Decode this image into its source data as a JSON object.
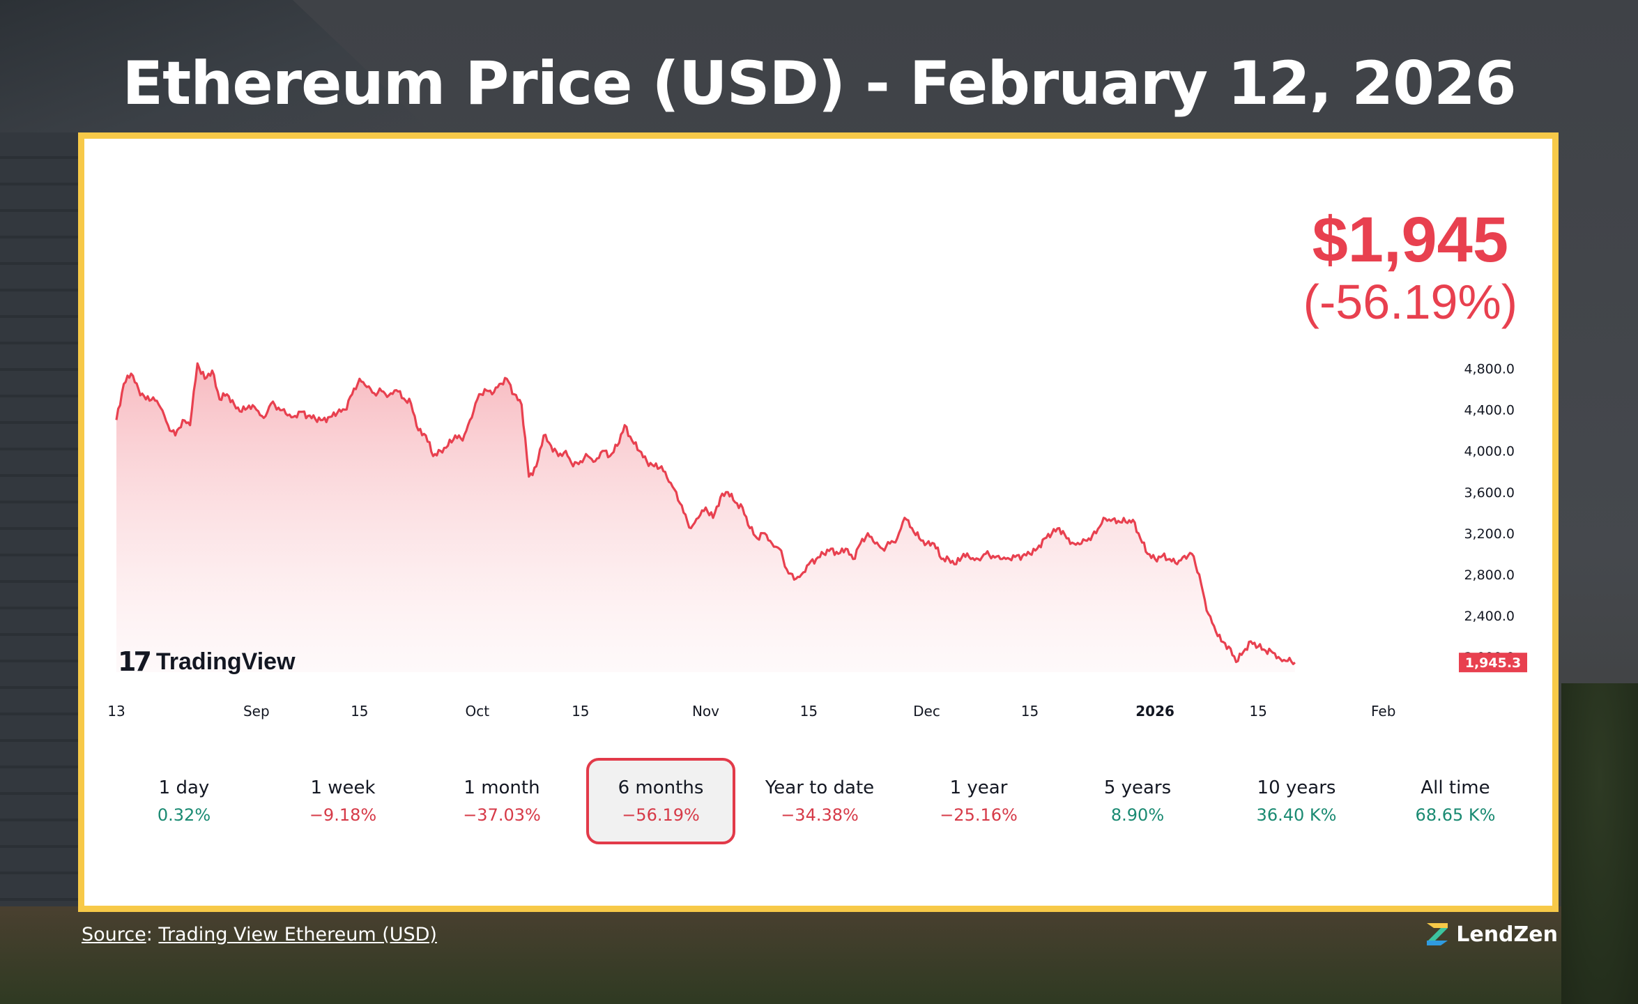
{
  "title": "Ethereum Price (USD) - February 12, 2026",
  "price": {
    "value": "$1,945",
    "change": "(-56.19%)"
  },
  "tradingview_label": "TradingView",
  "chart_data": {
    "type": "area",
    "ylim": [
      1750,
      5000
    ],
    "y_ticks": [
      4800,
      4400,
      4000,
      3600,
      3200,
      2800,
      2400,
      2000
    ],
    "y_tick_labels": [
      "4,800.0",
      "4,400.0",
      "4,000.0",
      "3,600.0",
      "3,200.0",
      "2,800.0",
      "2,400.0",
      "2,000.0"
    ],
    "x_ticks": [
      {
        "label": "13",
        "day": 0
      },
      {
        "label": "Sep",
        "day": 19
      },
      {
        "label": "15",
        "day": 33
      },
      {
        "label": "Oct",
        "day": 49
      },
      {
        "label": "15",
        "day": 63
      },
      {
        "label": "Nov",
        "day": 80
      },
      {
        "label": "15",
        "day": 94
      },
      {
        "label": "Dec",
        "day": 110
      },
      {
        "label": "15",
        "day": 124
      },
      {
        "label": "2026",
        "day": 141
      },
      {
        "label": "15",
        "day": 155
      },
      {
        "label": "Feb",
        "day": 172
      }
    ],
    "x_range": [
      0,
      183
    ],
    "last_value_label": "1,945.3",
    "series": [
      {
        "color": "#e8404f",
        "points": [
          [
            0,
            4300
          ],
          [
            1,
            4650
          ],
          [
            2,
            4750
          ],
          [
            3,
            4600
          ],
          [
            4,
            4500
          ],
          [
            5,
            4520
          ],
          [
            6,
            4420
          ],
          [
            7,
            4250
          ],
          [
            8,
            4150
          ],
          [
            9,
            4300
          ],
          [
            10,
            4250
          ],
          [
            11,
            4850
          ],
          [
            12,
            4700
          ],
          [
            13,
            4780
          ],
          [
            14,
            4500
          ],
          [
            15,
            4550
          ],
          [
            16,
            4450
          ],
          [
            17,
            4380
          ],
          [
            18,
            4440
          ],
          [
            19,
            4400
          ],
          [
            20,
            4320
          ],
          [
            21,
            4460
          ],
          [
            22,
            4420
          ],
          [
            23,
            4360
          ],
          [
            24,
            4330
          ],
          [
            25,
            4380
          ],
          [
            26,
            4340
          ],
          [
            27,
            4310
          ],
          [
            28,
            4300
          ],
          [
            29,
            4330
          ],
          [
            30,
            4370
          ],
          [
            31,
            4400
          ],
          [
            32,
            4550
          ],
          [
            33,
            4700
          ],
          [
            34,
            4620
          ],
          [
            35,
            4560
          ],
          [
            36,
            4580
          ],
          [
            37,
            4540
          ],
          [
            38,
            4590
          ],
          [
            39,
            4510
          ],
          [
            40,
            4460
          ],
          [
            41,
            4200
          ],
          [
            42,
            4150
          ],
          [
            43,
            3950
          ],
          [
            44,
            4000
          ],
          [
            45,
            4050
          ],
          [
            46,
            4150
          ],
          [
            47,
            4100
          ],
          [
            48,
            4300
          ],
          [
            49,
            4500
          ],
          [
            50,
            4600
          ],
          [
            51,
            4550
          ],
          [
            52,
            4650
          ],
          [
            53,
            4700
          ],
          [
            54,
            4550
          ],
          [
            55,
            4450
          ],
          [
            56,
            3750
          ],
          [
            57,
            3850
          ],
          [
            58,
            4150
          ],
          [
            59,
            4050
          ],
          [
            60,
            3950
          ],
          [
            61,
            4000
          ],
          [
            62,
            3850
          ],
          [
            63,
            3900
          ],
          [
            64,
            3950
          ],
          [
            65,
            3900
          ],
          [
            66,
            4000
          ],
          [
            67,
            3950
          ],
          [
            68,
            4050
          ],
          [
            69,
            4250
          ],
          [
            70,
            4100
          ],
          [
            71,
            4000
          ],
          [
            72,
            3900
          ],
          [
            73,
            3850
          ],
          [
            74,
            3850
          ],
          [
            75,
            3700
          ],
          [
            76,
            3600
          ],
          [
            77,
            3400
          ],
          [
            78,
            3250
          ],
          [
            79,
            3350
          ],
          [
            80,
            3450
          ],
          [
            81,
            3350
          ],
          [
            82,
            3550
          ],
          [
            83,
            3600
          ],
          [
            84,
            3500
          ],
          [
            85,
            3450
          ],
          [
            86,
            3250
          ],
          [
            87,
            3150
          ],
          [
            88,
            3200
          ],
          [
            89,
            3100
          ],
          [
            90,
            3050
          ],
          [
            91,
            2850
          ],
          [
            92,
            2750
          ],
          [
            93,
            2800
          ],
          [
            94,
            2900
          ],
          [
            95,
            2950
          ],
          [
            96,
            3000
          ],
          [
            97,
            3050
          ],
          [
            98,
            3000
          ],
          [
            99,
            3050
          ],
          [
            100,
            2950
          ],
          [
            101,
            3100
          ],
          [
            102,
            3200
          ],
          [
            103,
            3100
          ],
          [
            104,
            3050
          ],
          [
            105,
            3100
          ],
          [
            106,
            3150
          ],
          [
            107,
            3350
          ],
          [
            108,
            3250
          ],
          [
            109,
            3150
          ],
          [
            110,
            3100
          ],
          [
            111,
            3100
          ],
          [
            112,
            2950
          ],
          [
            113,
            2950
          ],
          [
            114,
            2900
          ],
          [
            115,
            3000
          ],
          [
            116,
            2950
          ],
          [
            117,
            2950
          ],
          [
            118,
            3000
          ],
          [
            119,
            2980
          ],
          [
            120,
            2950
          ],
          [
            121,
            2960
          ],
          [
            122,
            2970
          ],
          [
            123,
            2980
          ],
          [
            124,
            3000
          ],
          [
            125,
            3050
          ],
          [
            126,
            3150
          ],
          [
            127,
            3200
          ],
          [
            128,
            3250
          ],
          [
            129,
            3150
          ],
          [
            130,
            3100
          ],
          [
            131,
            3100
          ],
          [
            132,
            3150
          ],
          [
            133,
            3200
          ],
          [
            134,
            3350
          ],
          [
            135,
            3320
          ],
          [
            136,
            3320
          ],
          [
            137,
            3310
          ],
          [
            138,
            3330
          ],
          [
            139,
            3150
          ],
          [
            140,
            3000
          ],
          [
            141,
            2950
          ],
          [
            142,
            2980
          ],
          [
            143,
            2950
          ],
          [
            144,
            2900
          ],
          [
            145,
            2980
          ],
          [
            146,
            3000
          ],
          [
            147,
            2800
          ],
          [
            148,
            2450
          ],
          [
            149,
            2300
          ],
          [
            150,
            2150
          ],
          [
            151,
            2100
          ],
          [
            152,
            1950
          ],
          [
            153,
            2050
          ],
          [
            154,
            2150
          ],
          [
            155,
            2100
          ],
          [
            156,
            2060
          ],
          [
            157,
            2040
          ],
          [
            158,
            1980
          ],
          [
            159,
            1960
          ],
          [
            160,
            1945
          ]
        ]
      }
    ]
  },
  "periods": [
    {
      "label": "1 day",
      "change": "0.32%",
      "color": "#1a8a72",
      "active": false
    },
    {
      "label": "1 week",
      "change": "−9.18%",
      "color": "#d63a48",
      "active": false
    },
    {
      "label": "1 month",
      "change": "−37.03%",
      "color": "#d63a48",
      "active": false
    },
    {
      "label": "6 months",
      "change": "−56.19%",
      "color": "#d63a48",
      "active": true
    },
    {
      "label": "Year to date",
      "change": "−34.38%",
      "color": "#d63a48",
      "active": false
    },
    {
      "label": "1 year",
      "change": "−25.16%",
      "color": "#d63a48",
      "active": false
    },
    {
      "label": "5 years",
      "change": "8.90%",
      "color": "#1a8a72",
      "active": false
    },
    {
      "label": "10 years",
      "change": "36.40 K%",
      "color": "#1a8a72",
      "active": false
    },
    {
      "label": "All time",
      "change": "68.65 K%",
      "color": "#1a8a72",
      "active": false
    }
  ],
  "source": {
    "prefix": "Source",
    "link": "Trading View Ethereum (USD)"
  },
  "brand": "LendZen",
  "colors": {
    "accent_border": "#f7c948",
    "price_red": "#e8404f",
    "positive": "#1a8a72",
    "negative": "#d63a48"
  }
}
